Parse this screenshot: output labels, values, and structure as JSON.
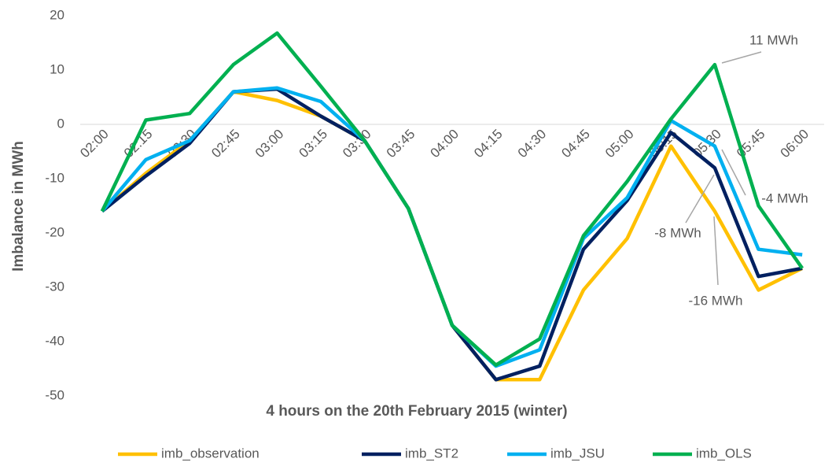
{
  "chart_data": {
    "type": "line",
    "x_label": "4 hours on the 20th February 2015 (winter)",
    "y_label": "Imbalance in MWh",
    "categories": [
      "02:00",
      "02:15",
      "02:30",
      "02:45",
      "03:00",
      "03:15",
      "03:30",
      "03:45",
      "04:00",
      "04:15",
      "04:30",
      "04:45",
      "05:00",
      "05:15",
      "05:30",
      "05:45",
      "06:00"
    ],
    "series": [
      {
        "name": "imb_observation",
        "color": "#ffc000",
        "values": [
          -16,
          -9,
          -3,
          6,
          4.4,
          1.5,
          -3,
          -15.5,
          -37,
          -47,
          -47,
          -30.5,
          -21,
          -4,
          -16,
          -30.5,
          -26.5
        ]
      },
      {
        "name": "imb_ST2",
        "color": "#002060",
        "values": [
          -16,
          -9.5,
          -3.5,
          6,
          6.5,
          1.5,
          -3,
          -15.5,
          -37,
          -47,
          -44.5,
          -23,
          -14,
          -1.5,
          -8,
          -28,
          -26.5
        ]
      },
      {
        "name": "imb_JSU",
        "color": "#00b0f0",
        "values": [
          -16,
          -6.5,
          -3,
          6,
          6.7,
          4.2,
          -3,
          -15.5,
          -37,
          -44.5,
          -41.5,
          -21,
          -13.5,
          0.7,
          -4,
          -23,
          -24
        ]
      },
      {
        "name": "imb_OLS",
        "color": "#00b050",
        "values": [
          -16,
          0.8,
          2,
          11,
          16.8,
          7,
          -3,
          -15.5,
          -37,
          -44.3,
          -39.5,
          -20.5,
          -10.5,
          1,
          11,
          -15,
          -26.5
        ]
      }
    ],
    "annotations": [
      "11 MWh",
      "-4 MWh",
      "-8 MWh",
      "-16 MWh"
    ],
    "ylim": [
      -50,
      20
    ],
    "yticks": [
      -50,
      -40,
      -30,
      -20,
      -10,
      0,
      10,
      20
    ],
    "grid": false,
    "legend": "bottom"
  }
}
